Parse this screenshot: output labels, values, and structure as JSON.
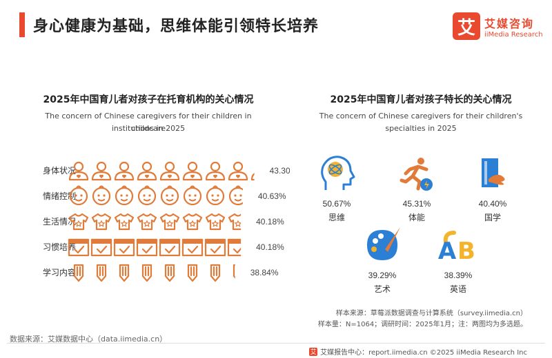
{
  "header": {
    "title": "身心健康为基础，思维体能引领特长培养",
    "logo_mark": "艾",
    "logo_cn": "艾媒咨询",
    "logo_en": "iiMedia Research"
  },
  "left_panel": {
    "title": "2025年中国育儿者对孩子在托育机构的关心情况",
    "subtitle_line1": "The concern of Chinese caregivers for their children in childcare",
    "subtitle_line2": "institutions in 2025"
  },
  "right_panel": {
    "title": "2025年中国育儿者对孩子特长的关心情况",
    "subtitle_line1": "The concern of Chinese caregivers for their children's",
    "subtitle_line2": "specialties in 2025"
  },
  "chart_data": [
    {
      "type": "bar",
      "title": "2025年中国育儿者对孩子在托育机构的关心情况",
      "subtitle": "The concern of Chinese caregivers for their children in childcare institutions in 2025",
      "categories": [
        "身体状况",
        "情绪控制",
        "生活情况",
        "习惯培养",
        "学习内容"
      ],
      "values": [
        43.3,
        40.63,
        40.18,
        40.18,
        38.84
      ],
      "labels": [
        "43.30%",
        "40.63%",
        "40.18%",
        "40.18%",
        "38.84%"
      ],
      "icons": [
        "person-icon",
        "baby-face-icon",
        "onesie-icon",
        "calendar-check-icon",
        "pencil-icon"
      ],
      "unit": "%",
      "color": "#e07b39"
    },
    {
      "type": "bar",
      "title": "2025年中国育儿者对孩子特长的关心情况",
      "subtitle": "The concern of Chinese caregivers for their children's specialties in 2025",
      "categories": [
        "思维",
        "体能",
        "国学",
        "艺术",
        "英语"
      ],
      "values": [
        50.67,
        45.31,
        40.4,
        39.29,
        38.39
      ],
      "labels": [
        "50.67%",
        "45.31%",
        "40.40%",
        "39.29%",
        "38.39%"
      ],
      "icons": [
        "brain-head-icon",
        "runner-icon",
        "book-icon",
        "palette-icon",
        "abc-letters-icon"
      ],
      "unit": "%"
    }
  ],
  "footer": {
    "source": "数据来源：艾媒数据中心（data.iimedia.cn）",
    "sample_source": "样本来源：草莓派数据调查与计算系统（survey.iimedia.cn）",
    "sample_info": "样本量：N=1064；调研时间：2025年1月；注：两图均为多选题。",
    "copyright": "艾媒报告中心：report.iimedia.cn   ©2025  iiMedia Research  Inc",
    "mini_mark": "艾"
  },
  "colors": {
    "accent": "#e8492f",
    "icon_orange": "#e07b39",
    "icon_blue": "#2b7fd4",
    "icon_yellow": "#f3b32b"
  }
}
